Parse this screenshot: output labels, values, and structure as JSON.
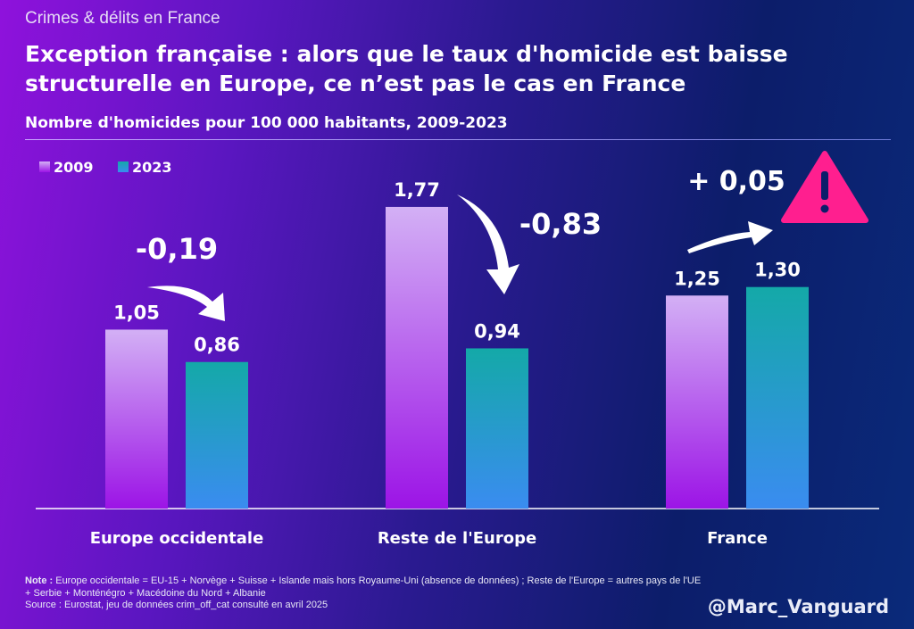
{
  "kicker": "Crimes & délits en France",
  "title": "Exception française : alors que le taux d'homicide est baisse structurelle en Europe, ce n’est pas le cas en France",
  "subtitle": "Nombre d'homicides pour 100 000 habitants, 2009-2023",
  "note_label": "Note :",
  "note_text": " Europe occidentale = EU-15 + Norvège + Suisse + Islande mais hors Royaume-Uni (absence de données) ; Reste de l'Europe = autres pays de l'UE + Serbie + Monténégro + Macédoine du Nord + Albanie",
  "source": "Source : Eurostat, jeu de données crim_off_cat consulté en avril 2025",
  "handle": "@Marc_Vanguard",
  "colors": {
    "s2009_top": "#d3b0f5",
    "s2009_bottom": "#9c14e6",
    "s2023_top": "#14a9a8",
    "s2023_bottom": "#3a8cf0",
    "warning": "#ff1f8f"
  },
  "chart_data": {
    "type": "bar",
    "title": "Nombre d'homicides pour 100 000 habitants, 2009-2023",
    "categories": [
      "Europe occidentale",
      "Reste de l'Europe",
      "France"
    ],
    "series": [
      {
        "name": "2009",
        "values": [
          1.05,
          1.77,
          1.25
        ],
        "labels": [
          "1,05",
          "1,77",
          "1,25"
        ]
      },
      {
        "name": "2023",
        "values": [
          0.86,
          0.94,
          1.3
        ],
        "labels": [
          "0,86",
          "0,94",
          "1,30"
        ]
      }
    ],
    "annotations": [
      "-0,19",
      "-0,83",
      "+ 0,05"
    ],
    "ylim": [
      0,
      1.9
    ],
    "legend": "top-left",
    "grid": false
  }
}
